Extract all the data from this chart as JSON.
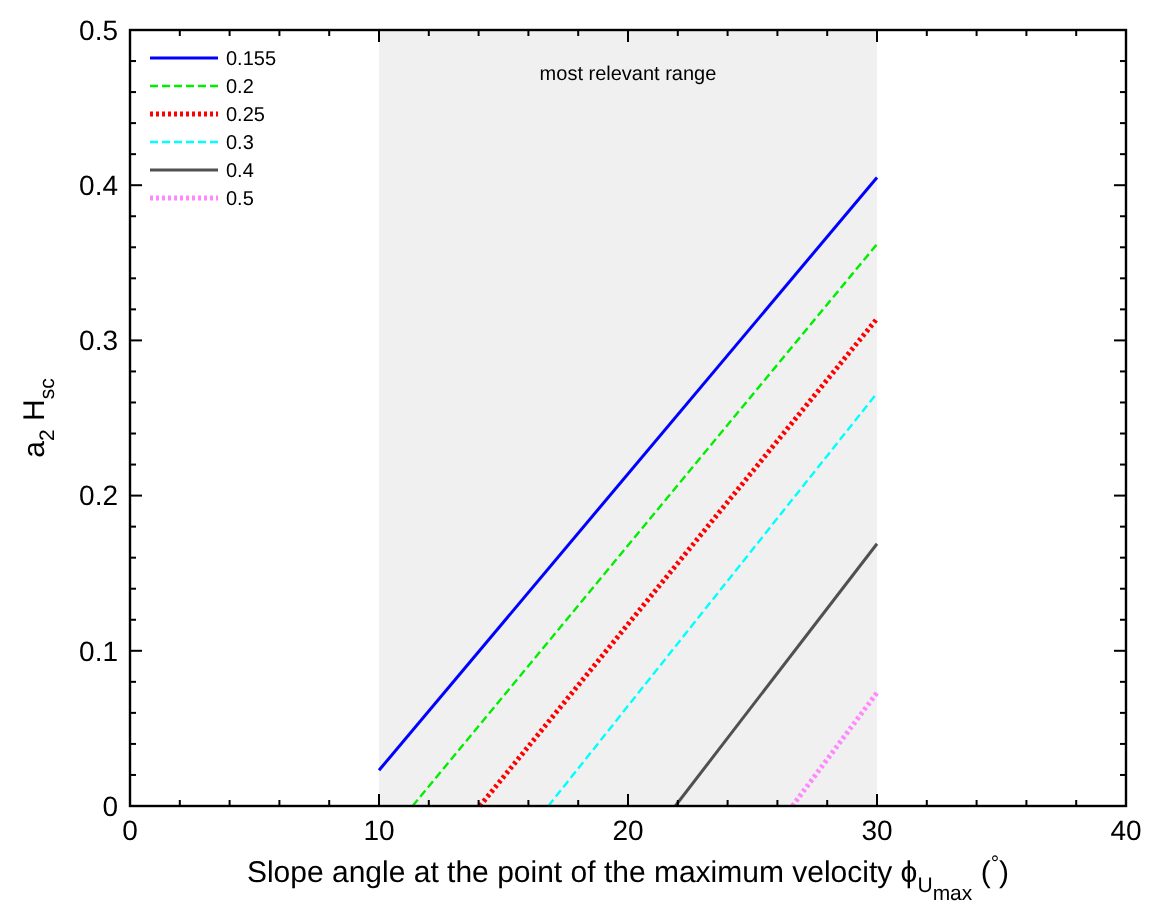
{
  "chart_data": {
    "type": "line",
    "xlabel": "Slope angle at the point of the maximum velocity ϕ$_{U}$$_{max}$ ($^{°}$)",
    "ylabel": "a$_{2}$ H$_{sc}$",
    "xlim": [
      0,
      40
    ],
    "ylim": [
      0,
      0.5
    ],
    "xticks": [
      0,
      {
        "value": 2,
        "label": null
      },
      {
        "value": 4,
        "label": null
      },
      {
        "value": 6,
        "label": null
      },
      {
        "value": 8,
        "label": null
      },
      10,
      {
        "value": 12,
        "label": null
      },
      {
        "value": 14,
        "label": null
      },
      {
        "value": 16,
        "label": null
      },
      {
        "value": 18,
        "label": null
      },
      20,
      {
        "value": 22,
        "label": null
      },
      {
        "value": 24,
        "label": null
      },
      {
        "value": 26,
        "label": null
      },
      {
        "value": 28,
        "label": null
      },
      30,
      {
        "value": 32,
        "label": null
      },
      {
        "value": 34,
        "label": null
      },
      {
        "value": 36,
        "label": null
      },
      {
        "value": 38,
        "label": null
      },
      40
    ],
    "yticks": [
      0,
      {
        "value": 0.02,
        "label": null
      },
      {
        "value": 0.04,
        "label": null
      },
      {
        "value": 0.06,
        "label": null
      },
      {
        "value": 0.08,
        "label": null
      },
      0.1,
      {
        "value": 0.12,
        "label": null
      },
      {
        "value": 0.14,
        "label": null
      },
      {
        "value": 0.16,
        "label": null
      },
      {
        "value": 0.18,
        "label": null
      },
      0.2,
      {
        "value": 0.22,
        "label": null
      },
      {
        "value": 0.24,
        "label": null
      },
      {
        "value": 0.26,
        "label": null
      },
      {
        "value": 0.28,
        "label": null
      },
      0.3,
      {
        "value": 0.32,
        "label": null
      },
      {
        "value": 0.34,
        "label": null
      },
      {
        "value": 0.36,
        "label": null
      },
      {
        "value": 0.38,
        "label": null
      },
      0.4,
      {
        "value": 0.42,
        "label": null
      },
      {
        "value": 0.44,
        "label": null
      },
      {
        "value": 0.46,
        "label": null
      },
      {
        "value": 0.48,
        "label": null
      },
      0.5
    ],
    "bands": [
      {
        "axis": "x",
        "from": 10,
        "to": 30,
        "label": "most relevant range",
        "color": "#f0f0f0"
      }
    ],
    "legend": "top left",
    "grid": false,
    "series": [
      {
        "name": "0.155",
        "color": "#0000ff",
        "line_style": "solid",
        "x": [
          10,
          30
        ],
        "values": [
          0.023,
          0.405
        ]
      },
      {
        "name": "0.2",
        "color": "#00ee00",
        "line_style": "dashed",
        "x": [
          11.35,
          30
        ],
        "values": [
          0,
          0.362
        ]
      },
      {
        "name": "0.25",
        "color": "#ff0000",
        "line_style": "dotted",
        "x": [
          14.05,
          30
        ],
        "values": [
          0,
          0.314
        ]
      },
      {
        "name": "0.3",
        "color": "#00ffff",
        "line_style": "dashed",
        "x": [
          16.8,
          30
        ],
        "values": [
          0,
          0.266
        ]
      },
      {
        "name": "0.4",
        "color": "#505050",
        "line_style": "solid",
        "x": [
          21.9,
          30
        ],
        "values": [
          0,
          0.169
        ]
      },
      {
        "name": "0.5",
        "color": "#ff88ff",
        "line_style": "dotted",
        "x": [
          26.6,
          30
        ],
        "values": [
          0,
          0.073
        ]
      }
    ]
  }
}
